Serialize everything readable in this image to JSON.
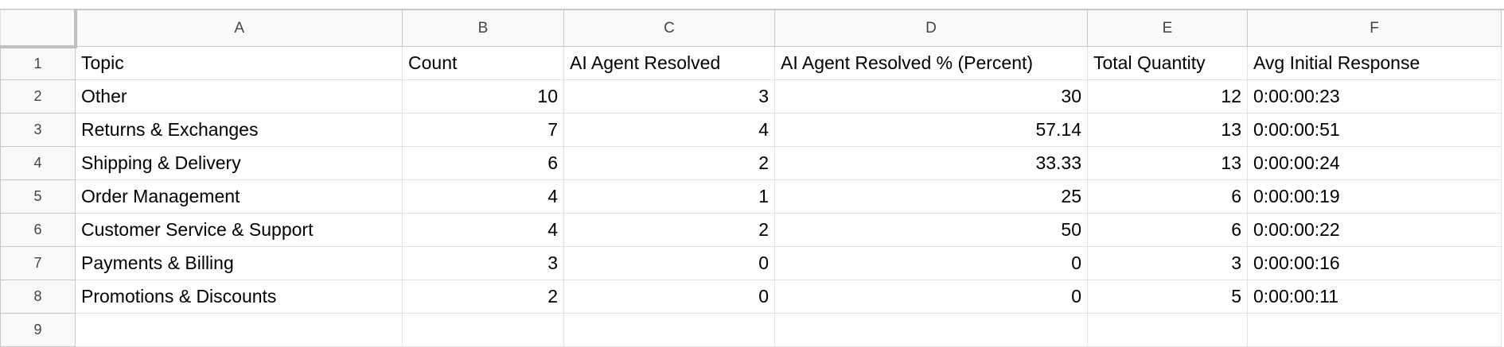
{
  "columns": [
    "A",
    "B",
    "C",
    "D",
    "E",
    "F"
  ],
  "header": [
    "Topic",
    "Count",
    "AI Agent Resolved",
    "AI Agent Resolved % (Percent)",
    "Total Quantity",
    "Avg Initial Response"
  ],
  "rows": [
    {
      "n": "2",
      "cells": [
        "Other",
        "10",
        "3",
        "30",
        "12",
        "0:00:00:23"
      ]
    },
    {
      "n": "3",
      "cells": [
        "Returns & Exchanges",
        "7",
        "4",
        "57.14",
        "13",
        "0:00:00:51"
      ]
    },
    {
      "n": "4",
      "cells": [
        "Shipping & Delivery",
        "6",
        "2",
        "33.33",
        "13",
        "0:00:00:24"
      ]
    },
    {
      "n": "5",
      "cells": [
        "Order Management",
        "4",
        "1",
        "25",
        "6",
        "0:00:00:19"
      ]
    },
    {
      "n": "6",
      "cells": [
        "Customer Service & Support",
        "4",
        "2",
        "50",
        "6",
        "0:00:00:22"
      ]
    },
    {
      "n": "7",
      "cells": [
        "Payments & Billing",
        "3",
        "0",
        "0",
        "3",
        "0:00:00:16"
      ]
    },
    {
      "n": "8",
      "cells": [
        "Promotions & Discounts",
        "2",
        "0",
        "0",
        "5",
        "0:00:00:11"
      ]
    }
  ],
  "row_numbers": [
    "1",
    "9"
  ]
}
